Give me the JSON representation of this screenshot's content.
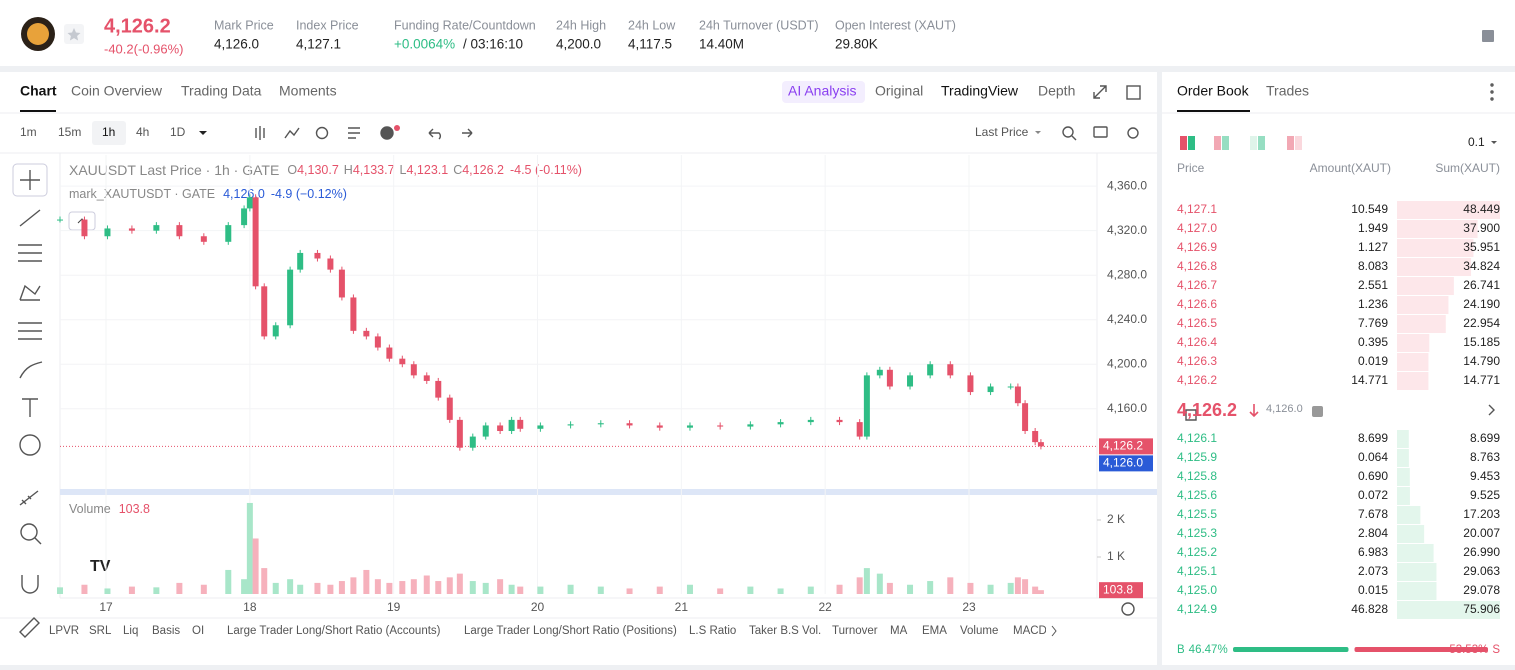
{
  "header": {
    "price": "4,126.2",
    "change": "-40.2(-0.96%)",
    "stats": [
      {
        "label": "Mark Price",
        "value": "4,126.0"
      },
      {
        "label": "Index Price",
        "value": "4,127.1"
      },
      {
        "label": "Funding Rate/Countdown",
        "value": "+0.0064%",
        "countdown": "/ 03:16:10"
      },
      {
        "label": "24h High",
        "value": "4,200.0"
      },
      {
        "label": "24h Low",
        "value": "4,117.5"
      },
      {
        "label": "24h Turnover (USDT)",
        "value": "14.40M"
      },
      {
        "label": "Open Interest (XAUT)",
        "value": "29.80K"
      }
    ]
  },
  "chart_tabs": [
    "Chart",
    "Coin Overview",
    "Trading Data",
    "Moments"
  ],
  "view_tabs": [
    "AI Analysis",
    "Original",
    "TradingView",
    "Depth"
  ],
  "intervals": [
    "1m",
    "15m",
    "1h",
    "4h",
    "1D"
  ],
  "price_source": "Last Price",
  "legend": {
    "title": "XAUUSDT Last Price · 1h · GATE",
    "ohlc": [
      {
        "key": "O",
        "value": "4,130.7"
      },
      {
        "key": "H",
        "value": "4,133.7"
      },
      {
        "key": "L",
        "value": "4,123.1"
      },
      {
        "key": "C",
        "value": "4,126.2"
      }
    ],
    "change": "-4.5 (-0.11%)",
    "mark_title": "mark_XAUTUSDT · GATE",
    "mark_value": "4,126.0",
    "mark_change": "-4.9 (−0.12%)"
  },
  "chart_data": [
    {
      "type": "line",
      "x": [
        16.68,
        16.85,
        17.01,
        17.18,
        17.35,
        17.51,
        17.68,
        17.85,
        17.96,
        18.0,
        18.04,
        18.1,
        18.18,
        18.28,
        18.35,
        18.47,
        18.56,
        18.64,
        18.72,
        18.81,
        18.89,
        18.97,
        19.06,
        19.14,
        19.23,
        19.31,
        19.39,
        19.46,
        19.55,
        19.64,
        19.74,
        19.82,
        19.88,
        20.02,
        20.23,
        20.44,
        20.64,
        20.85,
        21.06,
        21.27,
        21.48,
        21.69,
        21.9,
        22.1,
        22.24,
        22.29,
        22.38,
        22.45,
        22.59,
        22.73,
        22.87,
        23.01,
        23.15,
        23.29,
        23.34,
        23.39,
        23.46,
        23.5
      ],
      "values": [
        4330,
        4315,
        4322,
        4320,
        4325,
        4315,
        4310,
        4325,
        4340,
        4350,
        4270,
        4225,
        4235,
        4285,
        4300,
        4295,
        4285,
        4260,
        4230,
        4225,
        4215,
        4205,
        4200,
        4190,
        4185,
        4170,
        4150,
        4125,
        4135,
        4145,
        4140,
        4150,
        4142,
        4145,
        4146,
        4147,
        4145,
        4143,
        4145,
        4144,
        4146,
        4148,
        4150,
        4148,
        4135,
        4190,
        4195,
        4180,
        4190,
        4200,
        4190,
        4175,
        4180,
        4180,
        4165,
        4140,
        4130,
        4126.2
      ],
      "xlim": [
        16.68,
        23.89
      ],
      "xticks": [
        17,
        18,
        19,
        20,
        21,
        22,
        23
      ],
      "ylim": [
        4087,
        4388
      ],
      "yticks": [
        {
          "value": 4160,
          "label": "4,160.0"
        },
        {
          "value": 4200,
          "label": "4,200.0"
        },
        {
          "value": 4240,
          "label": "4,240.0"
        },
        {
          "value": 4280,
          "label": "4,280.0"
        },
        {
          "value": 4320,
          "label": "4,320.0"
        },
        {
          "value": 4360,
          "label": "4,360.0"
        }
      ],
      "last_price": {
        "value": 4126.2,
        "label": "4,126.2"
      },
      "mark_price": {
        "value": 4126.0,
        "label": "4,126.0"
      },
      "colors": {
        "up": "#2ebd85",
        "down": "#e5526a"
      },
      "grid": true
    },
    {
      "type": "bar",
      "title": "Volume",
      "current": {
        "value": 103.8,
        "label": "103.8"
      },
      "x": [
        16.68,
        16.85,
        17.01,
        17.18,
        17.35,
        17.51,
        17.68,
        17.85,
        17.96,
        18.0,
        18.04,
        18.1,
        18.18,
        18.28,
        18.35,
        18.47,
        18.56,
        18.64,
        18.72,
        18.81,
        18.89,
        18.97,
        19.06,
        19.14,
        19.23,
        19.31,
        19.39,
        19.46,
        19.55,
        19.64,
        19.74,
        19.82,
        19.88,
        20.02,
        20.23,
        20.44,
        20.64,
        20.85,
        21.06,
        21.27,
        21.48,
        21.69,
        21.9,
        22.1,
        22.24,
        22.29,
        22.38,
        22.45,
        22.59,
        22.73,
        22.87,
        23.01,
        23.15,
        23.29,
        23.34,
        23.39,
        23.46,
        23.5
      ],
      "values": [
        180,
        250,
        150,
        200,
        180,
        300,
        250,
        650,
        400,
        2460,
        1500,
        700,
        300,
        400,
        250,
        300,
        250,
        350,
        450,
        650,
        400,
        300,
        350,
        400,
        500,
        350,
        450,
        550,
        350,
        300,
        400,
        250,
        200,
        200,
        250,
        200,
        150,
        200,
        250,
        150,
        200,
        150,
        200,
        250,
        450,
        700,
        550,
        300,
        250,
        350,
        450,
        300,
        250,
        300,
        450,
        400,
        200,
        103.8
      ],
      "ylim": [
        0,
        2540
      ],
      "yticks": [
        {
          "value": 1000,
          "label": "1 K"
        },
        {
          "value": 2000,
          "label": "2 K"
        }
      ]
    }
  ],
  "indicators": [
    "LPVR",
    "SRL",
    "Liq",
    "Basis",
    "OI",
    "Large Trader Long/Short Ratio (Accounts)",
    "Large Trader Long/Short Ratio (Positions)",
    "L.S Ratio",
    "Taker B.S Vol.",
    "Turnover",
    "MA",
    "EMA",
    "Volume",
    "MACD"
  ],
  "order_book": {
    "tabs": [
      "Order Book",
      "Trades"
    ],
    "precision": "0.1",
    "columns": [
      "Price",
      "Amount(XAUT)",
      "Sum(XAUT)"
    ],
    "asks": [
      {
        "price": "4,127.1",
        "amount": "10.549",
        "sum": {
          "value": 48.449,
          "label": "48.449"
        }
      },
      {
        "price": "4,127.0",
        "amount": "1.949",
        "sum": {
          "value": 37.9,
          "label": "37.900"
        }
      },
      {
        "price": "4,126.9",
        "amount": "1.127",
        "sum": {
          "value": 35.951,
          "label": "35.951"
        }
      },
      {
        "price": "4,126.8",
        "amount": "8.083",
        "sum": {
          "value": 34.824,
          "label": "34.824"
        }
      },
      {
        "price": "4,126.7",
        "amount": "2.551",
        "sum": {
          "value": 26.741,
          "label": "26.741"
        }
      },
      {
        "price": "4,126.6",
        "amount": "1.236",
        "sum": {
          "value": 24.19,
          "label": "24.190"
        }
      },
      {
        "price": "4,126.5",
        "amount": "7.769",
        "sum": {
          "value": 22.954,
          "label": "22.954"
        }
      },
      {
        "price": "4,126.4",
        "amount": "0.395",
        "sum": {
          "value": 15.185,
          "label": "15.185"
        }
      },
      {
        "price": "4,126.3",
        "amount": "0.019",
        "sum": {
          "value": 14.79,
          "label": "14.790"
        }
      },
      {
        "price": "4,126.2",
        "amount": "14.771",
        "sum": {
          "value": 14.771,
          "label": "14.771"
        }
      }
    ],
    "mid": {
      "price": "4,126.2",
      "mark": "4,126.0"
    },
    "bids": [
      {
        "price": "4,126.1",
        "amount": "8.699",
        "sum": {
          "value": 8.699,
          "label": "8.699"
        }
      },
      {
        "price": "4,125.9",
        "amount": "0.064",
        "sum": {
          "value": 8.763,
          "label": "8.763"
        }
      },
      {
        "price": "4,125.8",
        "amount": "0.690",
        "sum": {
          "value": 9.453,
          "label": "9.453"
        }
      },
      {
        "price": "4,125.6",
        "amount": "0.072",
        "sum": {
          "value": 9.525,
          "label": "9.525"
        }
      },
      {
        "price": "4,125.5",
        "amount": "7.678",
        "sum": {
          "value": 17.203,
          "label": "17.203"
        }
      },
      {
        "price": "4,125.3",
        "amount": "2.804",
        "sum": {
          "value": 20.007,
          "label": "20.007"
        }
      },
      {
        "price": "4,125.2",
        "amount": "6.983",
        "sum": {
          "value": 26.99,
          "label": "26.990"
        }
      },
      {
        "price": "4,125.1",
        "amount": "2.073",
        "sum": {
          "value": 29.063,
          "label": "29.063"
        }
      },
      {
        "price": "4,125.0",
        "amount": "0.015",
        "sum": {
          "value": 29.078,
          "label": "29.078"
        }
      },
      {
        "price": "4,124.9",
        "amount": "46.828",
        "sum": {
          "value": 75.906,
          "label": "75.906"
        }
      }
    ],
    "ratio": {
      "buy": {
        "letter": "B",
        "value": 46.47,
        "label": "46.47%"
      },
      "sell": {
        "letter": "S",
        "value": 53.53,
        "label": "53.53%"
      }
    }
  }
}
